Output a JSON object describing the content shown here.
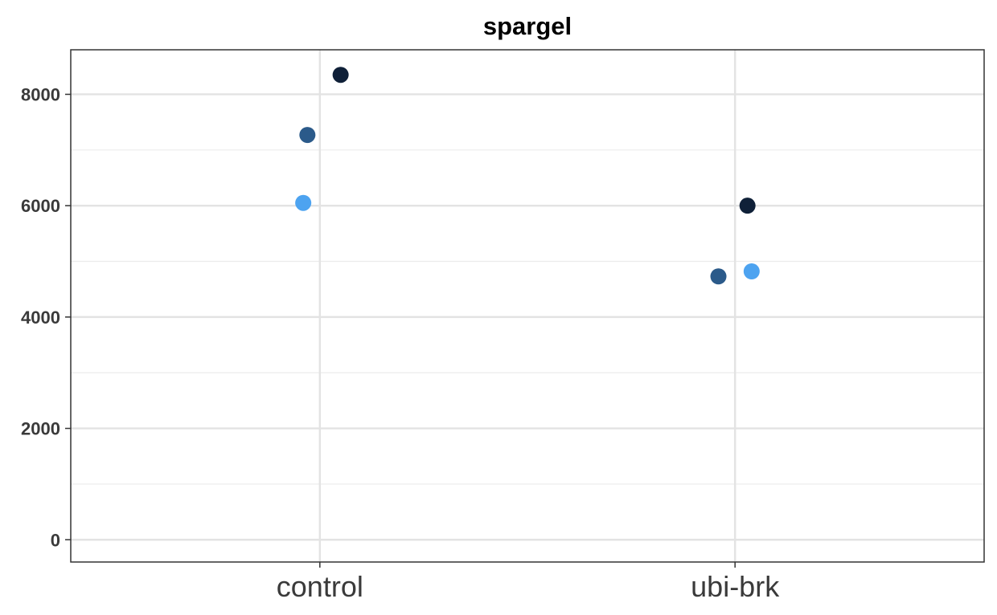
{
  "chart_data": {
    "type": "scatter",
    "title": "spargel",
    "xlabel": "",
    "ylabel": "",
    "categories": [
      "control",
      "ubi-brk"
    ],
    "ylim": [
      -400,
      8800
    ],
    "yticks": [
      0,
      2000,
      4000,
      6000,
      8000
    ],
    "ytick_labels": [
      "0",
      "2000",
      "4000",
      "6000",
      "8000"
    ],
    "grid": true,
    "legend": "none",
    "points": [
      {
        "category": "control",
        "jitter": -0.04,
        "y": 6050,
        "color": "#4da3f0"
      },
      {
        "category": "control",
        "jitter": -0.03,
        "y": 7270,
        "color": "#2b5a8a"
      },
      {
        "category": "control",
        "jitter": 0.05,
        "y": 8350,
        "color": "#0f2038"
      },
      {
        "category": "ubi-brk",
        "jitter": -0.04,
        "y": 4730,
        "color": "#2b5a8a"
      },
      {
        "category": "ubi-brk",
        "jitter": 0.03,
        "y": 6000,
        "color": "#0f2038"
      },
      {
        "category": "ubi-brk",
        "jitter": 0.04,
        "y": 4820,
        "color": "#4da3f0"
      }
    ]
  }
}
